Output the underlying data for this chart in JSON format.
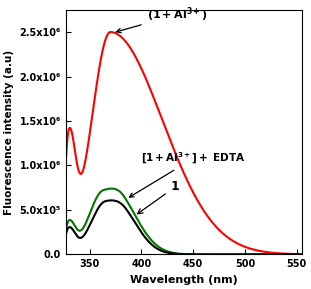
{
  "xlabel": "Wavelength (nm)",
  "ylabel": "Fluorescence intensity (a.u)",
  "xlim": [
    327,
    555
  ],
  "ylim": [
    0,
    2750000.0
  ],
  "yticks": [
    0.0,
    500000.0,
    1000000.0,
    1500000.0,
    2000000.0,
    2500000.0
  ],
  "ytick_labels": [
    "0.0",
    "5.0x10⁵",
    "1.0x10⁶",
    "1.5x10⁶",
    "2.0x10⁶",
    "2.5x10⁶"
  ],
  "xticks": [
    350,
    400,
    450,
    500,
    550
  ],
  "colors": {
    "black_line": "#000000",
    "red_line": "#ff0000",
    "green_line": "#007700"
  },
  "black_peak_x": 365,
  "black_peak_y": 580000,
  "red_peak_x": 370,
  "red_peak_y": 2500000,
  "green_peak_x": 363,
  "green_peak_y": 700000
}
